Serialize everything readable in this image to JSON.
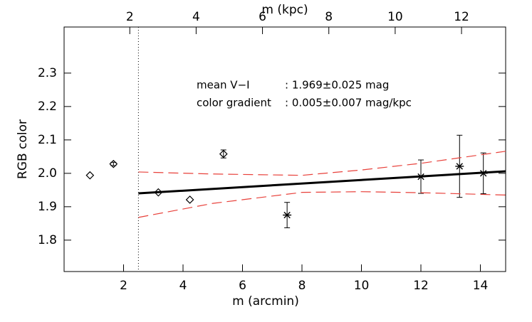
{
  "chart_data": {
    "type": "scatter",
    "xlabel": "m (arcmin)",
    "x2label": "m (kpc)",
    "ylabel": "RGB color",
    "xlim": [
      0,
      14.85
    ],
    "xticks": [
      2,
      4,
      6,
      8,
      10,
      12,
      14
    ],
    "x2lim": [
      0.02,
      13.33
    ],
    "x2ticks": [
      2,
      4,
      6,
      8,
      10,
      12
    ],
    "ylim": [
      1.706,
      2.438
    ],
    "yticks": [
      1.8,
      1.9,
      2.0,
      2.1,
      2.2,
      2.3
    ],
    "vlines": [
      2.5
    ],
    "annotations": [
      [
        "mean V−I",
        ": 1.969±0.025 mag"
      ],
      [
        "color gradient",
        ": 0.005±0.007 mag/kpc"
      ]
    ],
    "series": [
      {
        "marker": "diamond",
        "color": "#000000",
        "x": [
          0.87,
          1.66,
          3.17,
          4.23,
          5.36
        ],
        "values": [
          1.994,
          2.028,
          1.943,
          1.921,
          2.058
        ],
        "errors": [
          null,
          0.005,
          null,
          null,
          0.012
        ]
      },
      {
        "marker": "asterisk",
        "color": "#000000",
        "x": [
          7.5,
          12.0,
          13.3,
          14.1
        ],
        "values": [
          1.875,
          1.99,
          2.021,
          2.0
        ],
        "errors": [
          0.038,
          0.05,
          0.093,
          0.061
        ]
      },
      {
        "marker": "line",
        "color": "#000000",
        "x": [
          2.5,
          14.85
        ],
        "values": [
          1.94,
          2.006
        ]
      },
      {
        "marker": "dashed",
        "color": "#e8403a",
        "x": [
          2.5,
          5,
          8,
          10,
          12,
          14.85
        ],
        "values": [
          2.004,
          1.998,
          1.994,
          2.01,
          2.03,
          2.066
        ]
      },
      {
        "marker": "dashed",
        "color": "#e8403a",
        "x": [
          2.5,
          5,
          8,
          10,
          12,
          14.85
        ],
        "values": [
          1.868,
          1.91,
          1.943,
          1.945,
          1.942,
          1.935
        ]
      }
    ]
  }
}
